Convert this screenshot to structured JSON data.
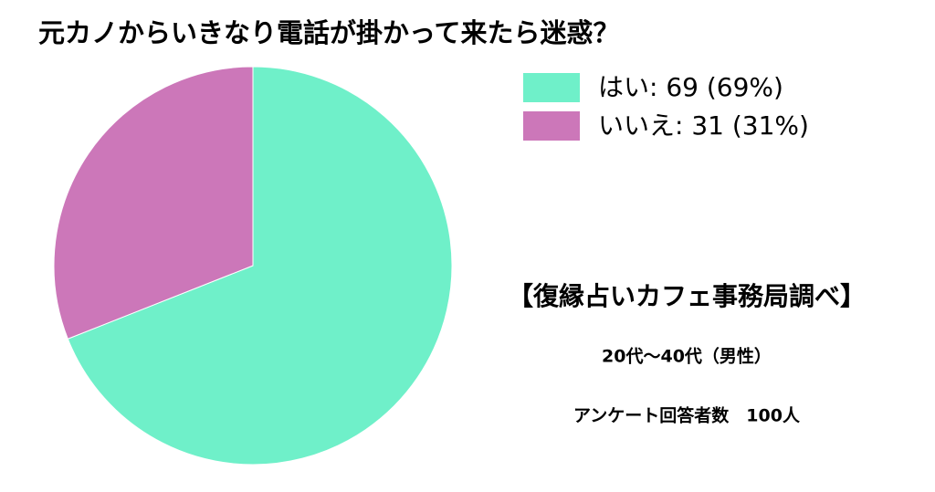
{
  "chart_data": {
    "type": "pie",
    "title": "元カノからいきなり電話が掛かって来たら迷惑？",
    "categories": [
      "はい: 69 (69%)",
      "いいえ: 31 (31%)"
    ],
    "values": [
      69,
      31
    ],
    "colors": [
      "#6ff0c9",
      "#cc77b9"
    ],
    "annotations": [
      "【復縁占いカフェ事務局調べ】",
      "20代〜40代（男性）",
      "アンケート回答者数　100人"
    ]
  }
}
